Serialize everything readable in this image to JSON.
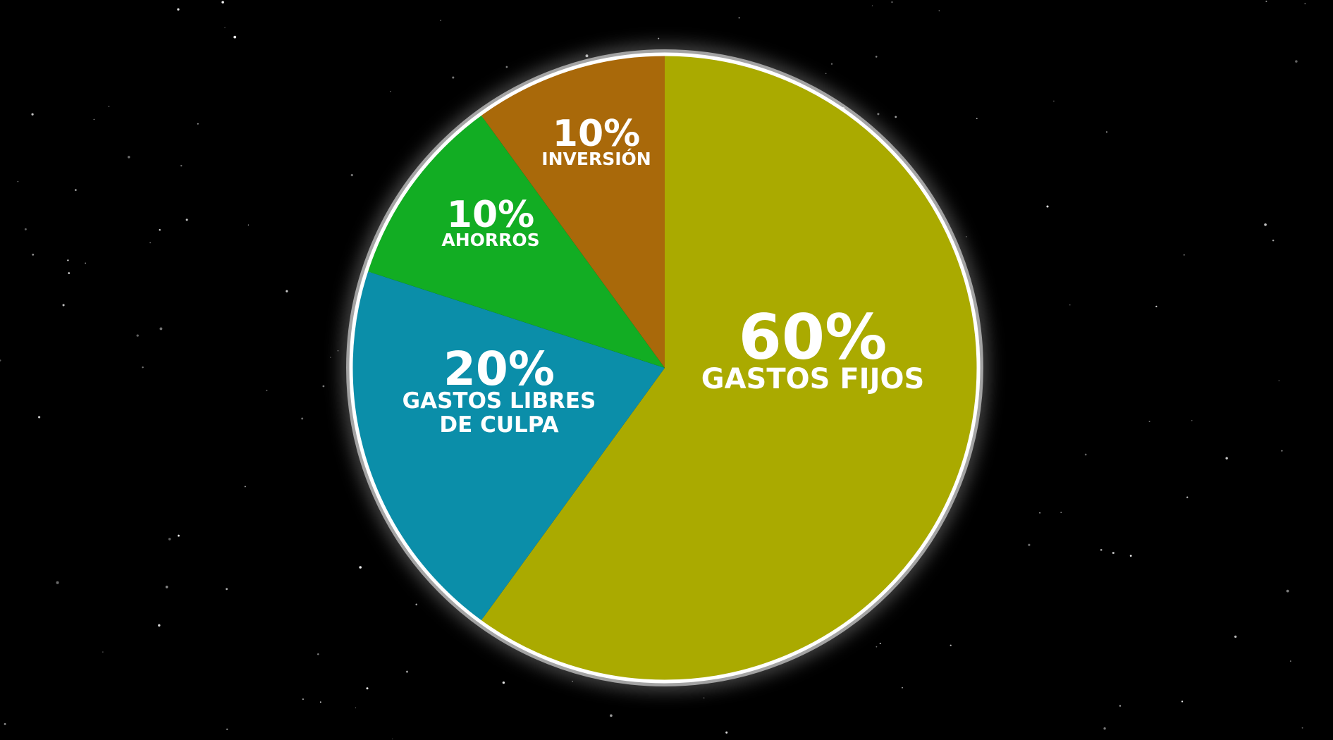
{
  "chart_data": {
    "type": "pie",
    "title": "",
    "start_angle_deg": 0,
    "direction": "clockwise",
    "slices": [
      {
        "pct_label": "60%",
        "name_lines": [
          "GASTOS FIJOS"
        ],
        "value": 60,
        "color": "#aaaa00"
      },
      {
        "pct_label": "20%",
        "name_lines": [
          "GASTOS LIBRES",
          "DE CULPA"
        ],
        "value": 20,
        "color": "#0b8ea9"
      },
      {
        "pct_label": "10%",
        "name_lines": [
          "AHORROS"
        ],
        "value": 10,
        "color": "#12ad23"
      },
      {
        "pct_label": "10%",
        "name_lines": [
          "INVERSIÓN"
        ],
        "value": 10,
        "color": "#a9690a"
      }
    ],
    "border_color": "#ffffff",
    "background_color": "#000000"
  }
}
